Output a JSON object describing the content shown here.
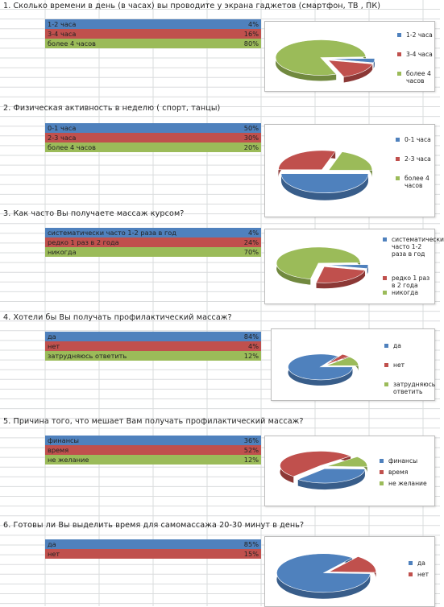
{
  "colors": {
    "blue": "#4f81bd",
    "red": "#c0504d",
    "green": "#9bbb59"
  },
  "questions": [
    {
      "title": "1. Сколько времени в день (в часах) вы проводите у экрана гаджетов (смартфон, ТВ , ПК)",
      "rows": [
        {
          "label": "1-2 часа",
          "pct": "4%"
        },
        {
          "label": "3-4 часа",
          "pct": "16%"
        },
        {
          "label": "более 4 часов",
          "pct": "80%"
        }
      ]
    },
    {
      "title": "2. Физическая активность в неделю ( спорт, танцы)",
      "rows": [
        {
          "label": "0-1 часа",
          "pct": "50%"
        },
        {
          "label": "2-3 часа",
          "pct": "30%"
        },
        {
          "label": "более 4 часов",
          "pct": "20%"
        }
      ]
    },
    {
      "title": "3. Как часто Вы получаете массаж курсом?",
      "rows": [
        {
          "label": "систематически часто 1-2 раза в год",
          "pct": "4%"
        },
        {
          "label": "редко 1 раз в 2 года",
          "pct": "24%"
        },
        {
          "label": "никогда",
          "pct": "70%"
        }
      ]
    },
    {
      "title": "4. Хотели бы Вы получать профилактический массаж?",
      "rows": [
        {
          "label": "да",
          "pct": "84%"
        },
        {
          "label": "нет",
          "pct": "4%"
        },
        {
          "label": "затрудняюсь ответить",
          "pct": "12%"
        }
      ]
    },
    {
      "title": "5. Причина того, что мешает Вам получать профилактический массаж?",
      "rows": [
        {
          "label": "финансы",
          "pct": "36%"
        },
        {
          "label": "время",
          "pct": "52%"
        },
        {
          "label": "не желание",
          "pct": "12%"
        }
      ]
    },
    {
      "title": "6. Готовы ли Вы выделить время для самомассажа 20-30 минут в день?",
      "rows": [
        {
          "label": "да",
          "pct": "85%"
        },
        {
          "label": "нет",
          "pct": "15%"
        }
      ]
    }
  ],
  "chart_data": [
    {
      "type": "pie",
      "categories": [
        "1-2 часа",
        "3-4 часа",
        "более 4 часов"
      ],
      "values": [
        4,
        16,
        80
      ],
      "legend_labels": [
        "1-2 часа",
        "3-4 часа",
        "более 4 часов"
      ],
      "legend_position": "right"
    },
    {
      "type": "pie",
      "categories": [
        "0-1 часа",
        "2-3 часа",
        "более 4 часов"
      ],
      "values": [
        50,
        30,
        20
      ],
      "legend_labels": [
        "0-1 часа",
        "2-3 часа",
        "более 4 часов"
      ],
      "legend_position": "right"
    },
    {
      "type": "pie",
      "categories": [
        "систематически часто 1-2 раза в год",
        "редко 1 раз в 2 года",
        "никогда"
      ],
      "values": [
        4,
        24,
        70
      ],
      "legend_labels": [
        "систематически часто 1-2 раза в год",
        "редко 1 раз в 2 года",
        "никогда"
      ],
      "legend_position": "right"
    },
    {
      "type": "pie",
      "categories": [
        "да",
        "нет",
        "затрудняюсь ответить"
      ],
      "values": [
        84,
        4,
        12
      ],
      "legend_labels": [
        "да",
        "нет",
        "затрудняюсь ответить"
      ],
      "legend_position": "right"
    },
    {
      "type": "pie",
      "categories": [
        "финансы",
        "время",
        "не желание"
      ],
      "values": [
        36,
        52,
        12
      ],
      "legend_labels": [
        "финансы",
        "время",
        "не желание"
      ],
      "legend_position": "right"
    },
    {
      "type": "pie",
      "categories": [
        "да",
        "нет"
      ],
      "values": [
        85,
        15
      ],
      "legend_labels": [
        "да",
        "нет"
      ],
      "legend_position": "right"
    }
  ]
}
